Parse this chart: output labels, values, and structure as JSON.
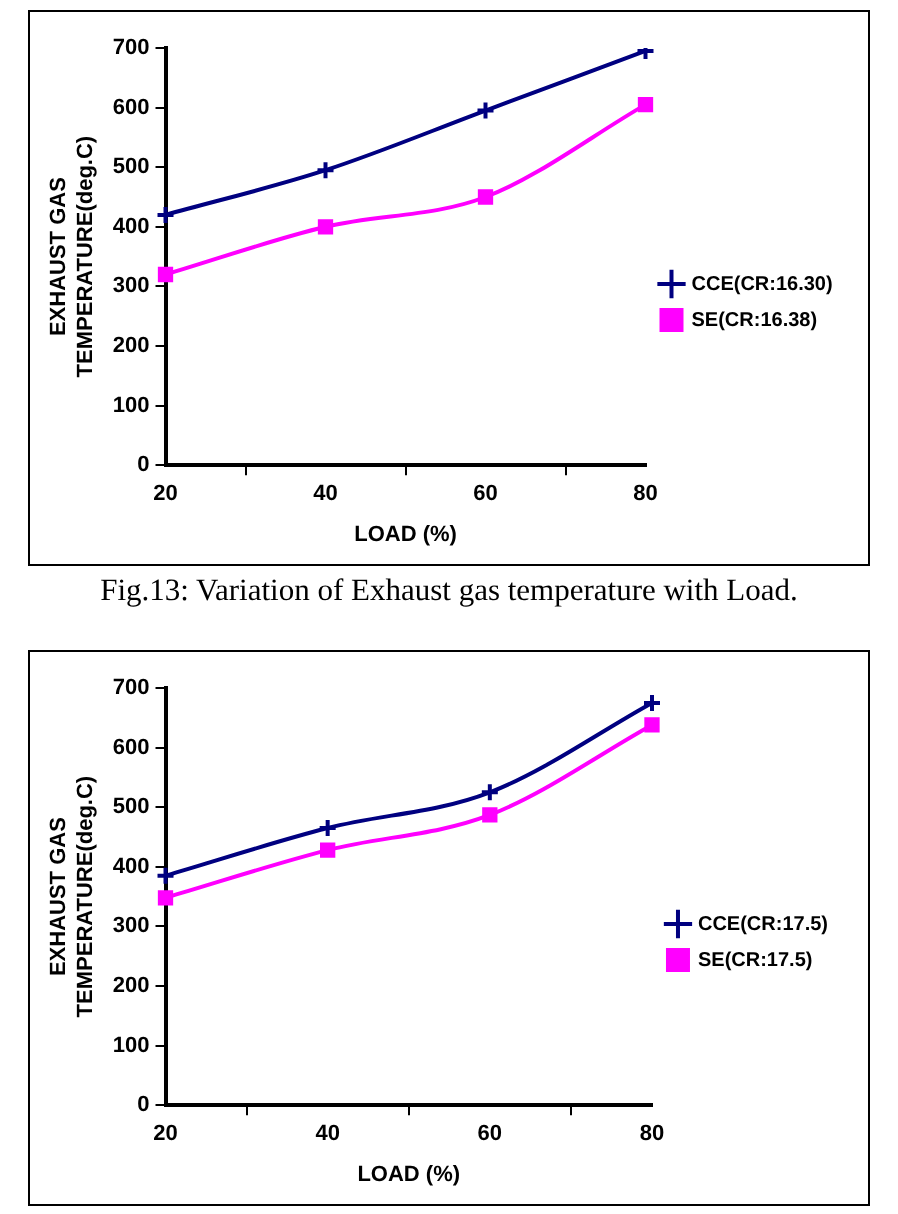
{
  "chart_data": [
    {
      "type": "line",
      "xlabel": "LOAD (%)",
      "ylabel": "EXHAUST GAS\nTEMPERATURE(deg.C)",
      "categories": [
        "20",
        "40",
        "60",
        "80"
      ],
      "ylim": [
        0,
        700
      ],
      "yticks": [
        0,
        100,
        200,
        300,
        400,
        500,
        600,
        700
      ],
      "legend": "right",
      "annotations": [
        "Fig.13: Variation of Exhaust gas temperature with Load."
      ],
      "series": [
        {
          "name": "CCE(CR:16.30)",
          "color": "#000080",
          "marker": "cross",
          "values": [
            420,
            495,
            595,
            695
          ]
        },
        {
          "name": "SE(CR:16.38)",
          "color": "#ff00ff",
          "marker": "square",
          "values": [
            320,
            400,
            450,
            605
          ]
        }
      ]
    },
    {
      "type": "line",
      "xlabel": "LOAD (%)",
      "ylabel": "EXHAUST GAS\nTEMPERATURE(deg.C)",
      "categories": [
        "20",
        "40",
        "60",
        "80"
      ],
      "ylim": [
        0,
        700
      ],
      "yticks": [
        0,
        100,
        200,
        300,
        400,
        500,
        600,
        700
      ],
      "legend": "right",
      "series": [
        {
          "name": "CCE(CR:17.5)",
          "color": "#000080",
          "marker": "cross",
          "values": [
            385,
            465,
            525,
            675
          ]
        },
        {
          "name": "SE(CR:17.5)",
          "color": "#ff00ff",
          "marker": "square",
          "values": [
            348,
            428,
            487,
            638
          ]
        }
      ]
    }
  ]
}
